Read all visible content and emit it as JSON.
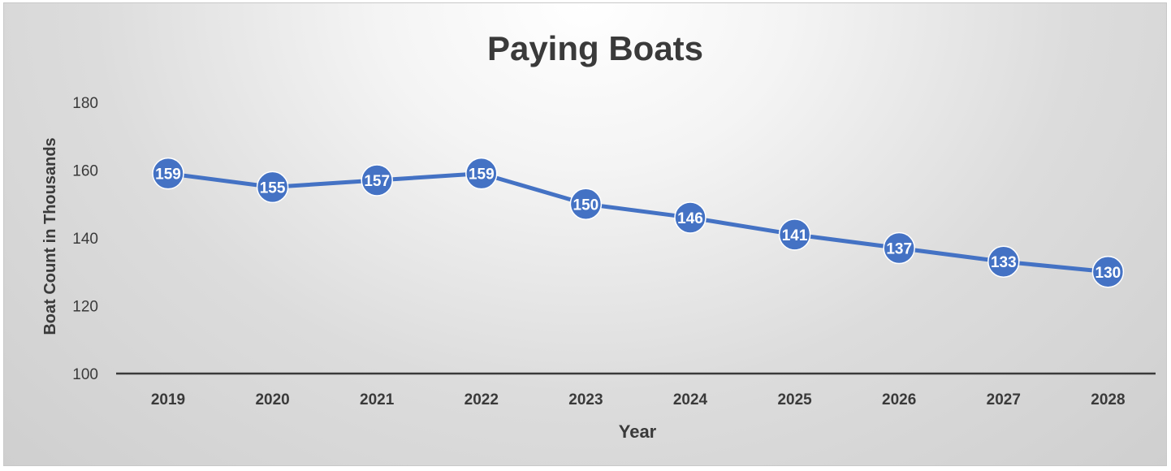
{
  "chart_data": {
    "type": "line",
    "title": "Paying Boats",
    "xlabel": "Year",
    "ylabel": "Boat Count in Thousands",
    "categories": [
      "2019",
      "2020",
      "2021",
      "2022",
      "2023",
      "2024",
      "2025",
      "2026",
      "2027",
      "2028"
    ],
    "series": [
      {
        "values": [
          159,
          155,
          157,
          159,
          150,
          146,
          141,
          137,
          133,
          130
        ]
      }
    ],
    "ylim": [
      100,
      180
    ],
    "yticks": [
      100,
      120,
      140,
      160,
      180
    ],
    "grid": false,
    "legend": "none",
    "data_labels": true,
    "colors": {
      "line": "#4472c4",
      "axis": "#3a3a3a",
      "text": "#3a3a3a",
      "label_text": "#ffffff"
    }
  }
}
